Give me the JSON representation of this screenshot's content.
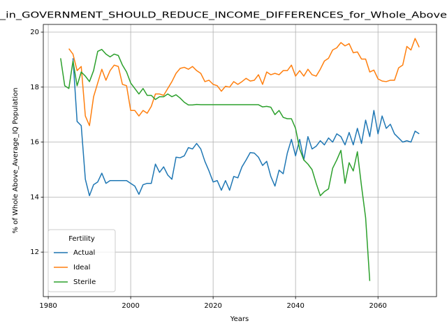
{
  "chart_data": {
    "type": "line",
    "title": "_in_GOVERNMENT_SHOULD_REDUCE_INCOME_DIFFERENCES_for_Whole_Above",
    "xlabel": "Years",
    "ylabel": "% of Whole Above_Average_IQ Population",
    "legend_title": "Fertility",
    "legend_loc": "lower left",
    "grid": true,
    "xlim": [
      1978.8,
      2074.2
    ],
    "ylim": [
      10.38,
      20.28
    ],
    "xticks": [
      1980,
      2000,
      2020,
      2040,
      2060
    ],
    "yticks": [
      12,
      14,
      16,
      18,
      20
    ],
    "x": [
      1983,
      1984,
      1985,
      1986,
      1987,
      1988,
      1989,
      1990,
      1991,
      1992,
      1993,
      1994,
      1995,
      1996,
      1997,
      1998,
      1999,
      2000,
      2001,
      2002,
      2003,
      2004,
      2005,
      2006,
      2007,
      2008,
      2009,
      2010,
      2011,
      2012,
      2013,
      2014,
      2015,
      2016,
      2017,
      2018,
      2019,
      2020,
      2021,
      2022,
      2023,
      2024,
      2025,
      2026,
      2027,
      2028,
      2029,
      2030,
      2031,
      2032,
      2033,
      2034,
      2035,
      2036,
      2037,
      2038,
      2039,
      2040,
      2041,
      2042,
      2043,
      2044,
      2045,
      2046,
      2047,
      2048,
      2049,
      2050,
      2051,
      2052,
      2053,
      2054,
      2055,
      2056,
      2057,
      2058,
      2059,
      2060,
      2061,
      2062,
      2063,
      2064,
      2065,
      2066,
      2067,
      2068,
      2069,
      2070
    ],
    "series": [
      {
        "name": "Actual",
        "color": "#1f77b4",
        "values": [
          null,
          null,
          null,
          19.05,
          16.75,
          16.6,
          14.65,
          14.05,
          14.45,
          14.55,
          14.87,
          14.5,
          14.6,
          14.6,
          14.6,
          14.6,
          14.6,
          14.5,
          14.4,
          14.1,
          14.45,
          14.5,
          14.5,
          15.2,
          14.9,
          15.1,
          14.8,
          14.65,
          15.45,
          15.43,
          15.5,
          15.8,
          15.75,
          15.95,
          15.75,
          15.3,
          14.95,
          14.55,
          14.6,
          14.25,
          14.6,
          14.25,
          14.75,
          14.7,
          15.1,
          15.35,
          15.62,
          15.6,
          15.45,
          15.15,
          15.3,
          14.75,
          14.4,
          14.98,
          14.85,
          15.6,
          16.1,
          15.5,
          16.1,
          15.35,
          16.2,
          15.75,
          15.85,
          16.05,
          15.9,
          16.15,
          16.0,
          16.3,
          16.2,
          15.9,
          16.35,
          15.9,
          16.5,
          15.95,
          16.8,
          16.2,
          17.15,
          16.3,
          16.95,
          16.5,
          16.65,
          16.3,
          16.15,
          16.0,
          16.05,
          16.0,
          16.4,
          16.3
        ]
      },
      {
        "name": "Ideal",
        "color": "#ff7f0e",
        "values": [
          null,
          null,
          19.4,
          19.2,
          18.6,
          18.75,
          16.95,
          16.6,
          17.65,
          18.15,
          18.65,
          18.25,
          18.6,
          18.8,
          18.75,
          18.1,
          18.05,
          17.15,
          17.15,
          16.95,
          17.15,
          17.05,
          17.3,
          17.75,
          17.75,
          17.7,
          17.95,
          18.2,
          18.5,
          18.68,
          18.72,
          18.65,
          18.75,
          18.6,
          18.5,
          18.2,
          18.25,
          18.1,
          18.05,
          17.85,
          18.03,
          18.0,
          18.2,
          18.1,
          18.2,
          18.32,
          18.22,
          18.25,
          18.45,
          18.1,
          18.55,
          18.45,
          18.5,
          18.45,
          18.6,
          18.6,
          18.8,
          18.4,
          18.6,
          18.4,
          18.65,
          18.45,
          18.4,
          18.65,
          18.95,
          19.05,
          19.35,
          19.43,
          19.62,
          19.5,
          19.58,
          19.25,
          19.28,
          19.02,
          19.02,
          18.55,
          18.62,
          18.3,
          18.22,
          18.2,
          18.25,
          18.25,
          18.7,
          18.8,
          19.48,
          19.35,
          19.77,
          19.45
        ]
      },
      {
        "name": "Sterile",
        "color": "#2ca02c",
        "values": [
          19.05,
          18.05,
          17.95,
          18.95,
          18.05,
          18.55,
          18.4,
          18.2,
          18.6,
          19.3,
          19.37,
          19.2,
          19.1,
          19.2,
          19.15,
          18.8,
          18.55,
          18.15,
          17.95,
          17.75,
          17.95,
          17.7,
          17.7,
          17.55,
          17.65,
          17.65,
          17.75,
          17.65,
          17.72,
          17.6,
          17.45,
          17.35,
          17.35,
          17.37,
          17.36,
          17.36,
          17.36,
          17.36,
          17.36,
          17.36,
          17.36,
          17.36,
          17.36,
          17.36,
          17.36,
          17.36,
          17.36,
          17.36,
          17.36,
          17.28,
          17.3,
          17.27,
          17.0,
          17.15,
          16.9,
          16.85,
          16.85,
          16.5,
          15.75,
          15.35,
          15.2,
          15.0,
          14.5,
          14.05,
          14.2,
          14.3,
          15.05,
          15.35,
          15.7,
          14.5,
          15.25,
          14.95,
          15.65,
          14.4,
          13.25,
          10.95,
          null,
          null,
          null,
          null,
          null,
          null,
          null,
          null,
          null,
          null,
          null,
          null
        ]
      }
    ]
  }
}
